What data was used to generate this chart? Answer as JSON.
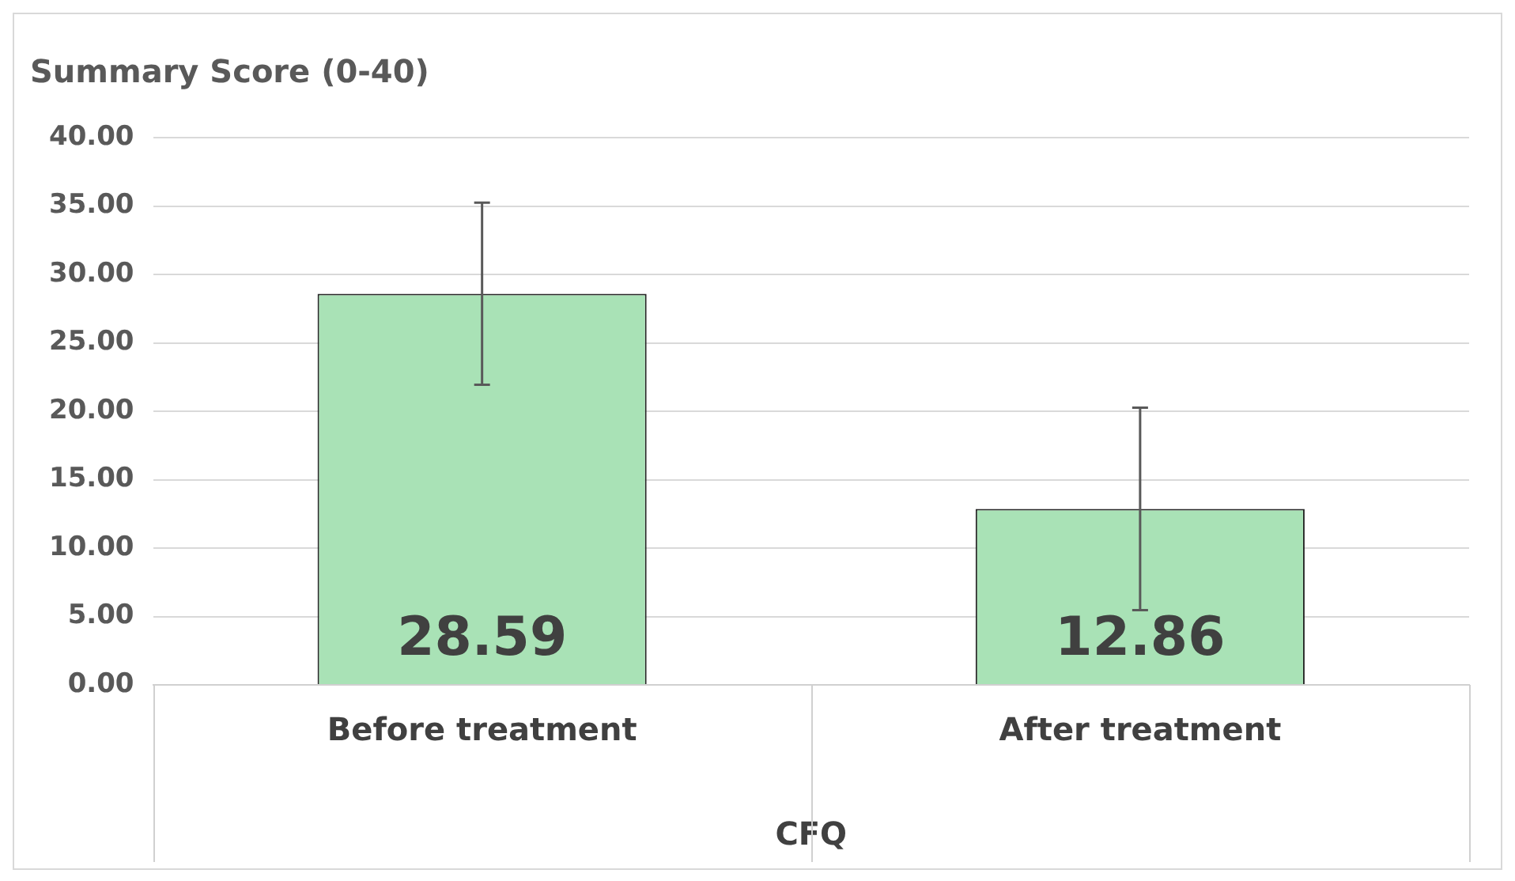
{
  "chart_data": {
    "type": "bar",
    "ylabel": "Summary Score (0-40)",
    "xlabel": "CFQ",
    "categories": [
      "Before treatment",
      "After treatment"
    ],
    "values": [
      28.59,
      12.86
    ],
    "errors": [
      6.65,
      7.4
    ],
    "color": "#a9e2b6",
    "ylim": [
      0,
      40
    ],
    "yticks": [
      {
        "value": 0,
        "label": "0.00"
      },
      {
        "value": 5,
        "label": "5.00"
      },
      {
        "value": 10,
        "label": "10.00"
      },
      {
        "value": 15,
        "label": "15.00"
      },
      {
        "value": 20,
        "label": "20.00"
      },
      {
        "value": 25,
        "label": "25.00"
      },
      {
        "value": 30,
        "label": "30.00"
      },
      {
        "value": 35,
        "label": "35.00"
      },
      {
        "value": 40,
        "label": "40.00"
      }
    ],
    "grid": "y",
    "data_labels": true,
    "legend": false
  }
}
